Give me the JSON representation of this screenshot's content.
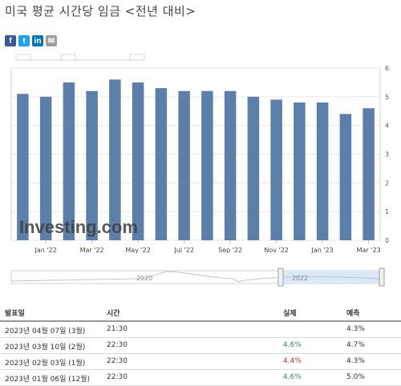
{
  "page_title": "미국 평균 시간당 임금 <전년 대비>",
  "share_buttons": [
    {
      "icon": "facebook-icon",
      "glyph": "f",
      "color": "#3b5998"
    },
    {
      "icon": "twitter-icon",
      "glyph": "t",
      "color": "#1da1f2"
    },
    {
      "icon": "linkedin-icon",
      "glyph": "in",
      "color": "#0077b5"
    },
    {
      "icon": "email-icon",
      "glyph": "✉",
      "color": "#9e9e9e"
    }
  ],
  "chart_data": {
    "type": "bar",
    "categories": [
      "Dec '21",
      "Jan '22",
      "Feb '22",
      "Mar '22",
      "Apr '22",
      "May '22",
      "Jun '22",
      "Jul '22",
      "Aug '22",
      "Sep '22",
      "Oct '22",
      "Nov '22",
      "Dec '22",
      "Jan '23",
      "Feb '23",
      "Mar '23"
    ],
    "values": [
      5.1,
      5.0,
      5.5,
      5.2,
      5.6,
      5.5,
      5.3,
      5.2,
      5.2,
      5.2,
      5.0,
      4.9,
      4.8,
      4.8,
      4.4,
      4.6
    ],
    "xtick_labels": [
      "Jan '22",
      "Mar '22",
      "May '22",
      "Jul '22",
      "Sep '22",
      "Nov '22",
      "Jan '23",
      "Mar '23"
    ],
    "xtick_indices": [
      1,
      3,
      5,
      7,
      9,
      11,
      13,
      15
    ],
    "yticks": [
      0,
      1,
      2,
      3,
      4,
      5,
      6
    ],
    "ylim": [
      0,
      6
    ],
    "bar_color": "#5b7fa8",
    "grid": true,
    "watermark": "Investing.com",
    "navigator_labels": [
      "2020",
      "2022"
    ]
  },
  "table": {
    "headers": {
      "date": "발표일",
      "time": "시간",
      "actual": "실제",
      "forecast": "예측"
    },
    "rows": [
      {
        "date": "2023년 04월 07일 (3월)",
        "time": "21:30",
        "actual": "",
        "actual_color": "#333333",
        "forecast": "4.3%"
      },
      {
        "date": "2023년 03월 10일 (2월)",
        "time": "22:30",
        "actual": "4.6%",
        "actual_color": "#2e8b57",
        "forecast": "4.7%"
      },
      {
        "date": "2023년 02월 03일 (1월)",
        "time": "22:30",
        "actual": "4.4%",
        "actual_color": "#c0392b",
        "forecast": "4.3%"
      },
      {
        "date": "2023년 01월 06일 (12월)",
        "time": "22:30",
        "actual": "4.6%",
        "actual_color": "#2e8b57",
        "forecast": "5.0%"
      }
    ]
  }
}
